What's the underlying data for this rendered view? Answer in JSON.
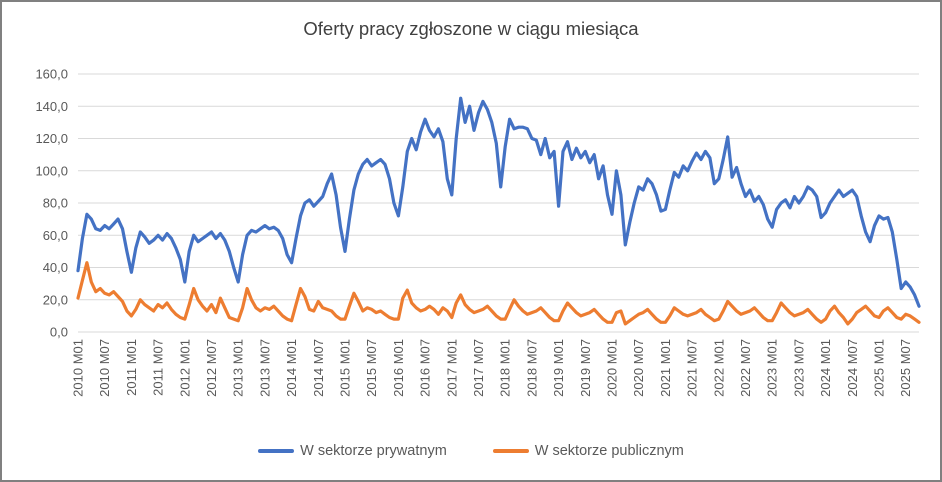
{
  "window": {
    "background": "#FFFFFF",
    "border_color": "#808080"
  },
  "chart": {
    "title": "Oferty pracy zgłoszone w ciągu miesiąca"
  },
  "legend": {
    "items": [
      {
        "label": "W sektorze prywatnym",
        "color": "#4472C4"
      },
      {
        "label": "W sektorze publicznym",
        "color": "#ED7D31"
      }
    ]
  },
  "y_axis": {
    "tick_labels": [
      "160,0",
      "140,0",
      "120,0",
      "100,0",
      "80,0",
      "60,0",
      "40,0",
      "20,0",
      "0,0"
    ]
  },
  "x_axis": {
    "tick_labels": [
      "2010 M01",
      "2010 M07",
      "2011 M01",
      "2011 M07",
      "2012 M01",
      "2012 M07",
      "2013 M01",
      "2013 M07",
      "2014 M01",
      "2014 M07",
      "2015 M01",
      "2015 M07",
      "2016 M01",
      "2016 M07",
      "2017 M01",
      "2017 M07",
      "2018 M01",
      "2018 M07",
      "2019 M01",
      "2019 M07",
      "2020 M01",
      "2020 M07",
      "2021 M01",
      "2021 M07",
      "2022 M01",
      "2022 M07",
      "2023 M01",
      "2023 M07",
      "2024 M01",
      "2024 M07",
      "2025 M01",
      "2025 M07"
    ],
    "tick_every_months": 6
  },
  "chart_data": {
    "type": "line",
    "title": "Oferty pracy zgłoszone w ciągu miesiąca",
    "x_unit": "month",
    "x_range": [
      "2010 M01",
      "2025 M10"
    ],
    "ylim": [
      0,
      160
    ],
    "y_step": 20,
    "grid": "horizontal",
    "grid_color": "#D9D9D9",
    "legend_position": "bottom",
    "series": [
      {
        "name": "W sektorze prywatnym",
        "color": "#4472C4",
        "values": [
          38,
          58,
          73,
          70,
          64,
          63,
          66,
          64,
          67,
          70,
          64,
          50,
          37,
          52,
          62,
          59,
          55,
          57,
          60,
          57,
          61,
          58,
          52,
          45,
          31,
          50,
          60,
          56,
          58,
          60,
          62,
          58,
          61,
          57,
          50,
          40,
          31,
          48,
          60,
          63,
          62,
          64,
          66,
          64,
          65,
          63,
          58,
          48,
          43,
          58,
          72,
          80,
          82,
          78,
          81,
          84,
          92,
          98,
          85,
          65,
          50,
          70,
          88,
          98,
          104,
          107,
          103,
          105,
          107,
          104,
          95,
          80,
          72,
          90,
          112,
          120,
          113,
          124,
          132,
          125,
          121,
          126,
          118,
          95,
          85,
          120,
          145,
          130,
          140,
          125,
          136,
          143,
          138,
          130,
          117,
          90,
          115,
          132,
          126,
          127,
          127,
          126,
          120,
          119,
          110,
          120,
          108,
          112,
          78,
          112,
          118,
          107,
          114,
          108,
          112,
          105,
          110,
          95,
          103,
          85,
          73,
          100,
          85,
          54,
          68,
          80,
          90,
          88,
          95,
          92,
          85,
          75,
          76,
          88,
          99,
          96,
          103,
          100,
          106,
          111,
          107,
          112,
          108,
          92,
          95,
          107,
          121,
          96,
          102,
          92,
          84,
          88,
          81,
          84,
          79,
          70,
          65,
          76,
          80,
          82,
          77,
          84,
          80,
          84,
          90,
          88,
          84,
          71,
          74,
          80,
          84,
          88,
          84,
          86,
          88,
          84,
          72,
          62,
          56,
          66,
          72,
          70,
          71,
          62,
          45,
          27,
          31,
          28,
          23,
          16
        ]
      },
      {
        "name": "W sektorze publicznym",
        "color": "#ED7D31",
        "values": [
          21,
          32,
          43,
          31,
          25,
          27,
          24,
          23,
          25,
          22,
          19,
          13,
          10,
          14,
          20,
          17,
          15,
          13,
          17,
          15,
          18,
          14,
          11,
          9,
          8,
          17,
          27,
          20,
          16,
          13,
          17,
          12,
          21,
          15,
          9,
          8,
          7,
          15,
          27,
          20,
          15,
          13,
          15,
          14,
          16,
          13,
          10,
          8,
          7,
          17,
          27,
          22,
          14,
          13,
          19,
          15,
          14,
          13,
          10,
          8,
          8,
          16,
          24,
          19,
          13,
          15,
          14,
          12,
          13,
          11,
          9,
          8,
          8,
          21,
          26,
          18,
          15,
          13,
          14,
          16,
          14,
          11,
          15,
          13,
          9,
          18,
          23,
          17,
          14,
          12,
          13,
          14,
          16,
          13,
          10,
          8,
          8,
          14,
          20,
          16,
          13,
          11,
          12,
          13,
          15,
          12,
          9,
          7,
          7,
          13,
          18,
          15,
          12,
          10,
          11,
          12,
          14,
          11,
          8,
          6,
          6,
          12,
          13,
          5,
          7,
          9,
          11,
          12,
          14,
          11,
          8,
          6,
          6,
          10,
          15,
          13,
          11,
          10,
          11,
          12,
          14,
          11,
          9,
          7,
          8,
          13,
          19,
          16,
          13,
          11,
          12,
          13,
          15,
          12,
          9,
          7,
          7,
          12,
          18,
          15,
          12,
          10,
          11,
          12,
          14,
          11,
          8,
          6,
          8,
          13,
          16,
          12,
          9,
          5,
          8,
          12,
          14,
          16,
          13,
          10,
          9,
          13,
          15,
          12,
          9,
          8,
          11,
          10,
          8,
          6
        ]
      }
    ]
  }
}
